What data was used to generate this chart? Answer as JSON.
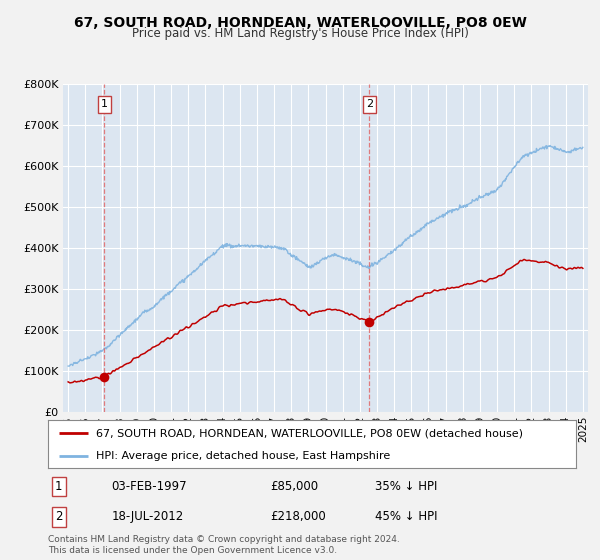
{
  "title": "67, SOUTH ROAD, HORNDEAN, WATERLOOVILLE, PO8 0EW",
  "subtitle": "Price paid vs. HM Land Registry's House Price Index (HPI)",
  "legend_line1": "67, SOUTH ROAD, HORNDEAN, WATERLOOVILLE, PO8 0EW (detached house)",
  "legend_line2": "HPI: Average price, detached house, East Hampshire",
  "annotation1": {
    "label": "1",
    "date": "03-FEB-1997",
    "price": "£85,000",
    "hpi": "35% ↓ HPI",
    "x_year": 1997.1,
    "y_val": 85000
  },
  "annotation2": {
    "label": "2",
    "date": "18-JUL-2012",
    "price": "£218,000",
    "hpi": "45% ↓ HPI",
    "x_year": 2012.55,
    "y_val": 218000
  },
  "footer": "Contains HM Land Registry data © Crown copyright and database right 2024.\nThis data is licensed under the Open Government Licence v3.0.",
  "hpi_line_color": "#7fb3e0",
  "price_line_color": "#c00000",
  "dashed_line_color": "#e06060",
  "background_color": "#dce6f1",
  "fig_bg_color": "#f2f2f2",
  "ylim": [
    0,
    800000
  ],
  "xlim_start": 1994.7,
  "xlim_end": 2025.3,
  "yticks": [
    0,
    100000,
    200000,
    300000,
    400000,
    500000,
    600000,
    700000,
    800000
  ],
  "ytick_labels": [
    "£0",
    "£100K",
    "£200K",
    "£300K",
    "£400K",
    "£500K",
    "£600K",
    "£700K",
    "£800K"
  ]
}
